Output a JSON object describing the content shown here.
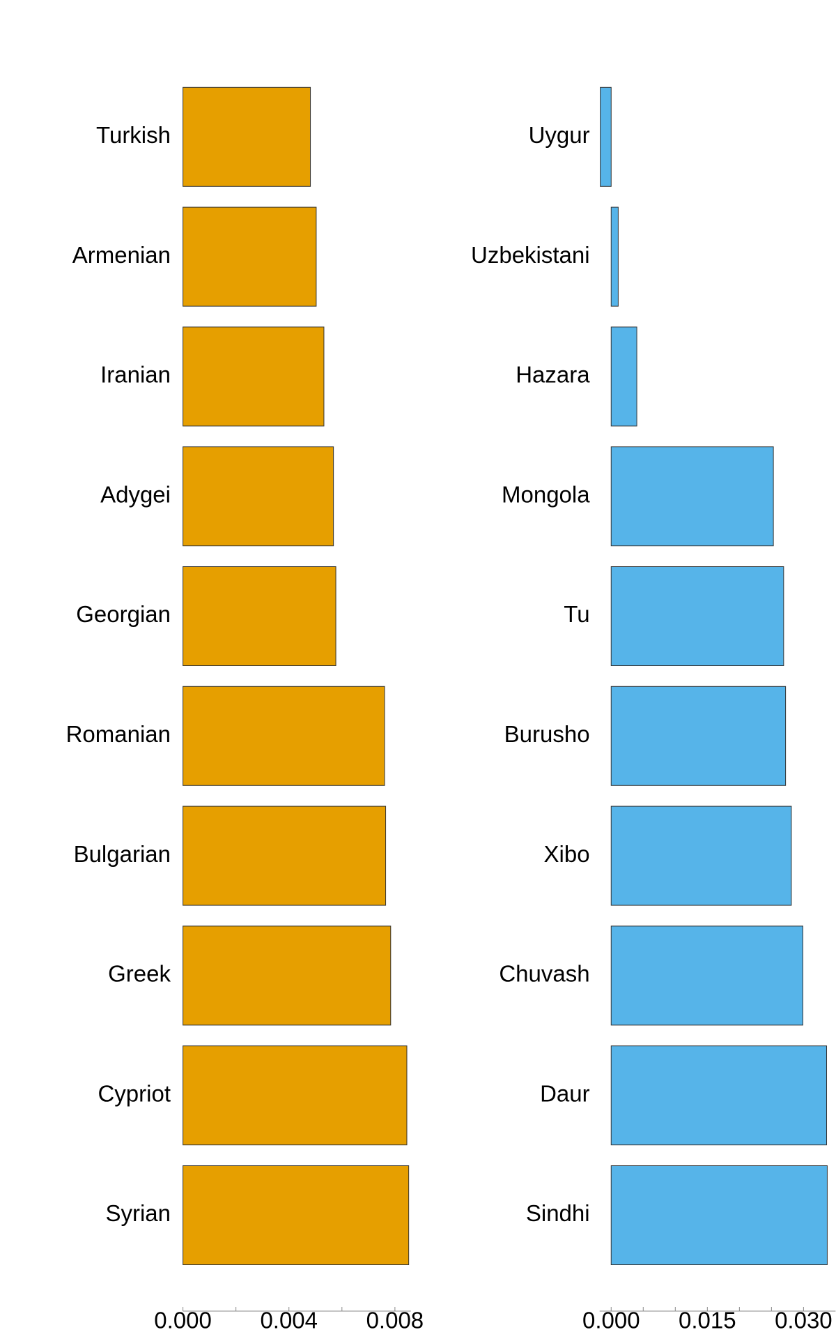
{
  "chart_data": [
    {
      "type": "barh",
      "color": "#e69f00",
      "categories": [
        "Turkish",
        "Armenian",
        "Iranian",
        "Adygei",
        "Georgian",
        "Romanian",
        "Bulgarian",
        "Greek",
        "Cypriot",
        "Syrian"
      ],
      "values": [
        0.00481,
        0.00503,
        0.00532,
        0.00568,
        0.00577,
        0.00761,
        0.00765,
        0.00784,
        0.00845,
        0.00852
      ],
      "xlim": [
        0,
        0.0086
      ],
      "xticks": [
        {
          "value": 0,
          "label": "0.000"
        },
        {
          "value": 0.004,
          "label": "0.004"
        },
        {
          "value": 0.008,
          "label": "0.008"
        }
      ],
      "xminorticks": [
        0.002,
        0.006
      ]
    },
    {
      "type": "barh",
      "color": "#56b4e9",
      "categories": [
        "Uygur",
        "Uzbekistani",
        "Hazara",
        "Mongola",
        "Tu",
        "Burusho",
        "Xibo",
        "Chuvash",
        "Daur",
        "Sindhi"
      ],
      "values": [
        -0.0017,
        0.0011,
        0.004,
        0.0253,
        0.0269,
        0.0272,
        0.0281,
        0.0299,
        0.0336,
        0.0337
      ],
      "xlim": [
        -0.0018,
        0.035
      ],
      "xticks": [
        {
          "value": 0,
          "label": "0.000"
        },
        {
          "value": 0.015,
          "label": "0.015"
        },
        {
          "value": 0.03,
          "label": "0.030"
        }
      ],
      "xminorticks": [
        0.005,
        0.01,
        0.02,
        0.025
      ]
    }
  ]
}
